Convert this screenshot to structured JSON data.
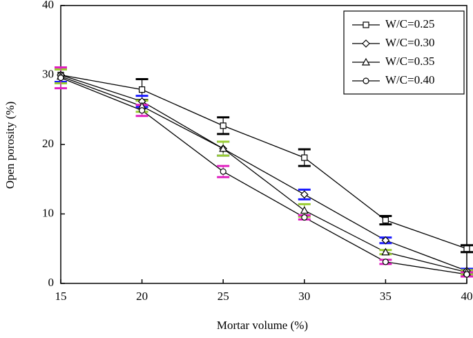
{
  "chart_data": {
    "type": "line",
    "x_label": "Mortar volume (%)",
    "y_label": "Open porosity (%)",
    "x": [
      15,
      20,
      25,
      30,
      35,
      40
    ],
    "xlim": [
      15,
      40
    ],
    "xticks": [
      15,
      20,
      25,
      30,
      35,
      40
    ],
    "ylim": [
      0,
      40
    ],
    "yticks": [
      0,
      10,
      20,
      30,
      40
    ],
    "legend": "top-right",
    "series": [
      {
        "name": "W/C=0.25",
        "color": "#000000",
        "marker": "square",
        "error_color": "#000000",
        "values": [
          30.0,
          27.9,
          22.7,
          18.1,
          9.1,
          5.0
        ],
        "errors": [
          1.0,
          1.5,
          1.2,
          1.2,
          0.6,
          0.5
        ]
      },
      {
        "name": "W/C=0.30",
        "color": "#000000",
        "marker": "diamond",
        "error_color": "#1a1aff",
        "values": [
          30.0,
          26.2,
          19.4,
          12.8,
          6.2,
          1.8
        ],
        "errors": [
          1.0,
          0.8,
          1.0,
          0.7,
          0.4,
          0.3
        ]
      },
      {
        "name": "W/C=0.35",
        "color": "#000000",
        "marker": "triangle",
        "error_color": "#99cc33",
        "values": [
          29.8,
          25.5,
          19.4,
          10.5,
          4.5,
          1.6
        ],
        "errors": [
          1.0,
          0.8,
          1.0,
          0.9,
          0.3,
          0.3
        ]
      },
      {
        "name": "W/C=0.40",
        "color": "#000000",
        "marker": "circle",
        "error_color": "#e020c0",
        "values": [
          29.6,
          24.9,
          16.1,
          9.5,
          3.1,
          1.3
        ],
        "errors": [
          1.5,
          0.8,
          0.8,
          0.3,
          0.3,
          0.3
        ]
      }
    ]
  }
}
